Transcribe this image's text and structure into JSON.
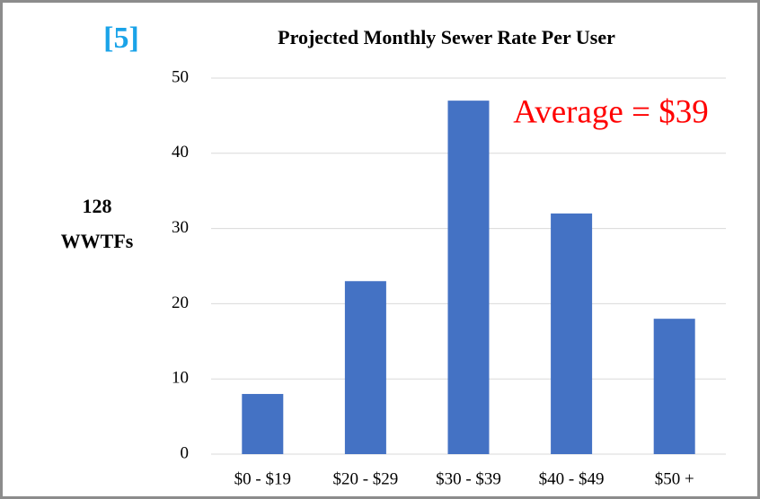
{
  "chart_data": {
    "type": "bar",
    "reference": "[5]",
    "title": "Projected Monthly Sewer Rate Per User",
    "ylabel": [
      "128",
      "WWTFs"
    ],
    "annotation": "Average = $39",
    "categories": [
      "$0 - $19",
      "$20 - $29",
      "$30 - $39",
      "$40 - $49",
      "$50 +"
    ],
    "values": [
      8,
      23,
      47,
      32,
      18
    ],
    "color": "#4472c4",
    "ylim": [
      0,
      50
    ],
    "yticks": [
      0,
      10,
      20,
      30,
      40,
      50
    ],
    "grid": true
  }
}
